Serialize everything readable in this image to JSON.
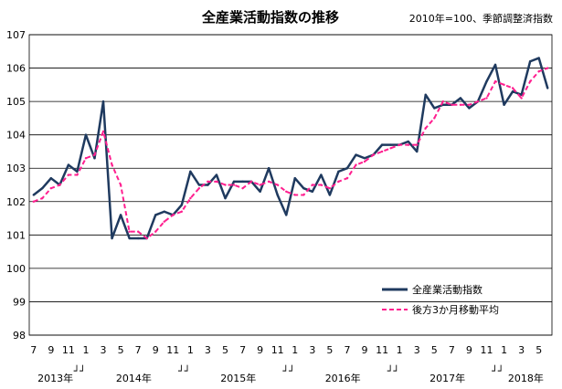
{
  "chart_data": {
    "type": "line",
    "title": "全産業活動指数の推移",
    "subtitle": "2010年=100、季節調整済指数",
    "xlabel": "",
    "ylabel": "",
    "ylim": [
      98,
      107
    ],
    "yticks": [
      98,
      99,
      100,
      101,
      102,
      103,
      104,
      105,
      106,
      107
    ],
    "grid": "horizontal",
    "legend_position": "bottom-right",
    "x_tick_labels": [
      "7",
      "9",
      "11",
      "1",
      "3",
      "5",
      "7",
      "9",
      "11",
      "1",
      "3",
      "5",
      "7",
      "9",
      "11",
      "1",
      "3",
      "5",
      "7",
      "9",
      "11",
      "1",
      "3",
      "5",
      "7",
      "9",
      "11",
      "1",
      "3",
      "5"
    ],
    "year_labels": [
      "2013年",
      "2014年",
      "2015年",
      "2016年",
      "2017年",
      "2018年"
    ],
    "year_break_mark": "┘┘",
    "x": [
      "2013-07",
      "2013-08",
      "2013-09",
      "2013-10",
      "2013-11",
      "2013-12",
      "2014-01",
      "2014-02",
      "2014-03",
      "2014-04",
      "2014-05",
      "2014-06",
      "2014-07",
      "2014-08",
      "2014-09",
      "2014-10",
      "2014-11",
      "2014-12",
      "2015-01",
      "2015-02",
      "2015-03",
      "2015-04",
      "2015-05",
      "2015-06",
      "2015-07",
      "2015-08",
      "2015-09",
      "2015-10",
      "2015-11",
      "2015-12",
      "2016-01",
      "2016-02",
      "2016-03",
      "2016-04",
      "2016-05",
      "2016-06",
      "2016-07",
      "2016-08",
      "2016-09",
      "2016-10",
      "2016-11",
      "2016-12",
      "2017-01",
      "2017-02",
      "2017-03",
      "2017-04",
      "2017-05",
      "2017-06",
      "2017-07",
      "2017-08",
      "2017-09",
      "2017-10",
      "2017-11",
      "2017-12",
      "2018-01",
      "2018-02",
      "2018-03",
      "2018-04",
      "2018-05",
      "2018-06"
    ],
    "series": [
      {
        "name": "全産業活動指数",
        "color": "#1f3a5f",
        "style": "solid",
        "values": [
          102.2,
          102.4,
          102.7,
          102.5,
          103.1,
          102.9,
          104.0,
          103.3,
          105.0,
          100.9,
          101.6,
          100.9,
          100.9,
          100.9,
          101.6,
          101.7,
          101.6,
          101.9,
          102.9,
          102.5,
          102.5,
          102.8,
          102.1,
          102.6,
          102.6,
          102.6,
          102.3,
          103.0,
          102.2,
          101.6,
          102.7,
          102.4,
          102.3,
          102.8,
          102.2,
          102.9,
          103.0,
          103.4,
          103.3,
          103.4,
          103.7,
          103.7,
          103.7,
          103.8,
          103.5,
          105.2,
          104.8,
          104.9,
          104.9,
          105.1,
          104.8,
          105.0,
          105.6,
          106.1,
          104.9,
          105.3,
          105.2,
          106.2,
          106.3,
          105.4
        ]
      },
      {
        "name": "後方3か月移動平均",
        "color": "#ff1f8f",
        "style": "dashed",
        "values": [
          102.0,
          102.1,
          102.4,
          102.5,
          102.8,
          102.8,
          103.3,
          103.4,
          104.1,
          103.1,
          102.5,
          101.1,
          101.1,
          100.9,
          101.1,
          101.4,
          101.6,
          101.7,
          102.1,
          102.4,
          102.6,
          102.6,
          102.5,
          102.5,
          102.4,
          102.6,
          102.5,
          102.6,
          102.5,
          102.3,
          102.2,
          102.2,
          102.5,
          102.5,
          102.4,
          102.6,
          102.7,
          103.1,
          103.2,
          103.4,
          103.5,
          103.6,
          103.7,
          103.7,
          103.7,
          104.2,
          104.5,
          105.0,
          104.9,
          104.9,
          104.9,
          105.0,
          105.1,
          105.6,
          105.5,
          105.4,
          105.1,
          105.6,
          105.9,
          106.0
        ]
      }
    ]
  }
}
